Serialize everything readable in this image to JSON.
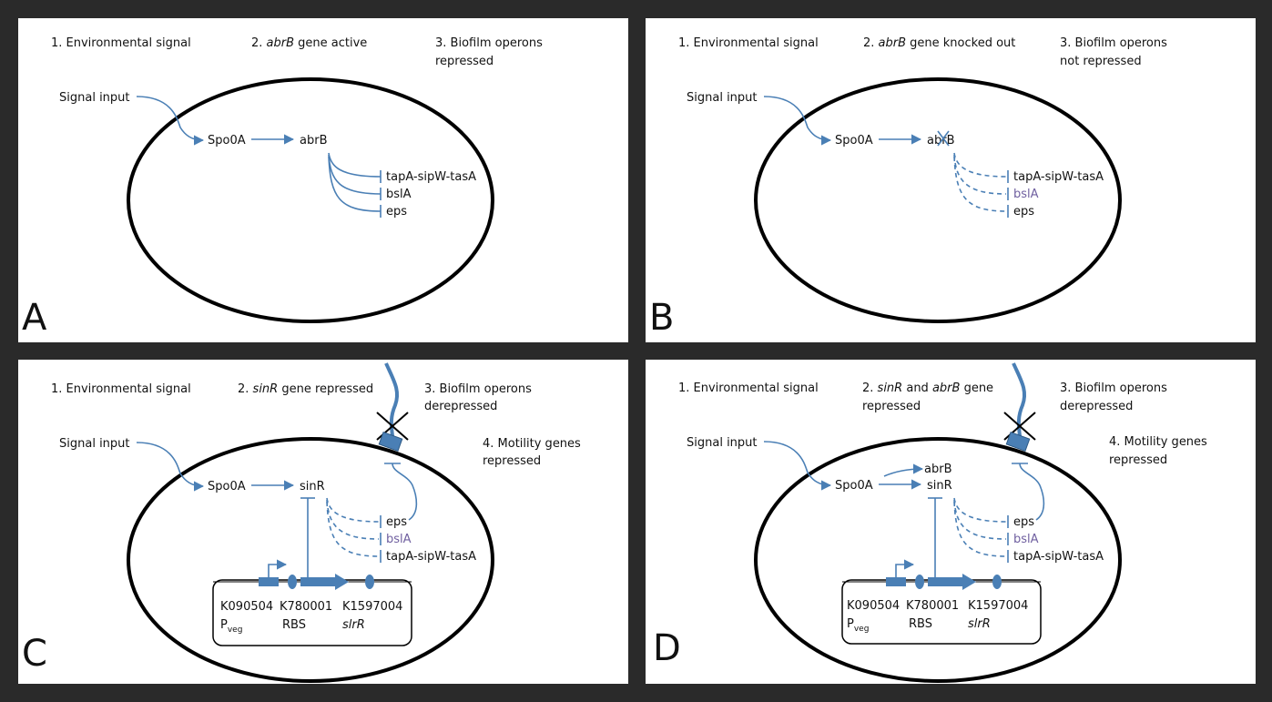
{
  "panels": {
    "A": {
      "letter": "A",
      "step1": "1. Environmental signal",
      "step2_prefix": "2. ",
      "step2_gene": "abrB",
      "step2_suffix": " gene active",
      "step3_line1": "3. Biofilm operons",
      "step3_line2": "repressed",
      "signal_input": "Signal input",
      "spo0a": "Spo0A",
      "abrb": "abrB",
      "tapa": "tapA-sipW-tasA",
      "bsla": "bslA",
      "eps": "eps"
    },
    "B": {
      "letter": "B",
      "step1": "1. Environmental signal",
      "step2_prefix": "2. ",
      "step2_gene": "abrB",
      "step2_suffix": " gene knocked out",
      "step3_line1": "3. Biofilm operons",
      "step3_line2": "not repressed",
      "signal_input": "Signal input",
      "spo0a": "Spo0A",
      "abrb": "abrB",
      "tapa_part1": "tapA-sipW-",
      "tapa_part2": "tasA",
      "bsla": "bslA",
      "eps": "eps"
    },
    "C": {
      "letter": "C",
      "step1": "1. Environmental signal",
      "step2_prefix": "2. ",
      "step2_gene": "sinR",
      "step2_suffix": " gene repressed",
      "step3_line1": "3. Biofilm operons",
      "step3_line2": "derepressed",
      "step4_line1": "4. Motility genes",
      "step4_line2": "repressed",
      "signal_input": "Signal input",
      "spo0a": "Spo0A",
      "sinr": "sinR",
      "eps": "eps",
      "bsla": "bslA",
      "tapa_part1": "tapA-sipW-",
      "tapa_part2": "tasA",
      "part1_id": "K090504",
      "part1_name": "P",
      "part1_sub": "veg",
      "part2_id": "K780001",
      "part2_name": "RBS",
      "part3_id": "K1597004",
      "part3_name": "slrR"
    },
    "D": {
      "letter": "D",
      "step1": "1. Environmental signal",
      "step2_line1_prefix": "2. ",
      "step2_gene1": "sinR",
      "step2_mid": " and ",
      "step2_gene2": "abrB",
      "step2_line1_suffix": " gene",
      "step2_line2": "repressed",
      "step3_line1": "3. Biofilm operons",
      "step3_line2": "derepressed",
      "step4_line1": "4. Motility genes",
      "step4_line2": "repressed",
      "signal_input": "Signal input",
      "spo0a": "Spo0A",
      "abrb": "abrB",
      "sinr": "sinR",
      "eps": "eps",
      "bsla": "bslA",
      "tapa_part1": "tapA-sipW-",
      "tapa_part2": "tasA",
      "part1_id": "K090504",
      "part1_name": "P",
      "part1_sub": "veg",
      "part2_id": "K780001",
      "part2_name": "RBS",
      "part3_id": "K1597004",
      "part3_name": "slrR"
    }
  },
  "colors": {
    "arrow_blue": "#4a7fb5",
    "green": "#7a9a48",
    "purple": "#7060a0",
    "background": "#2a2a2a"
  }
}
